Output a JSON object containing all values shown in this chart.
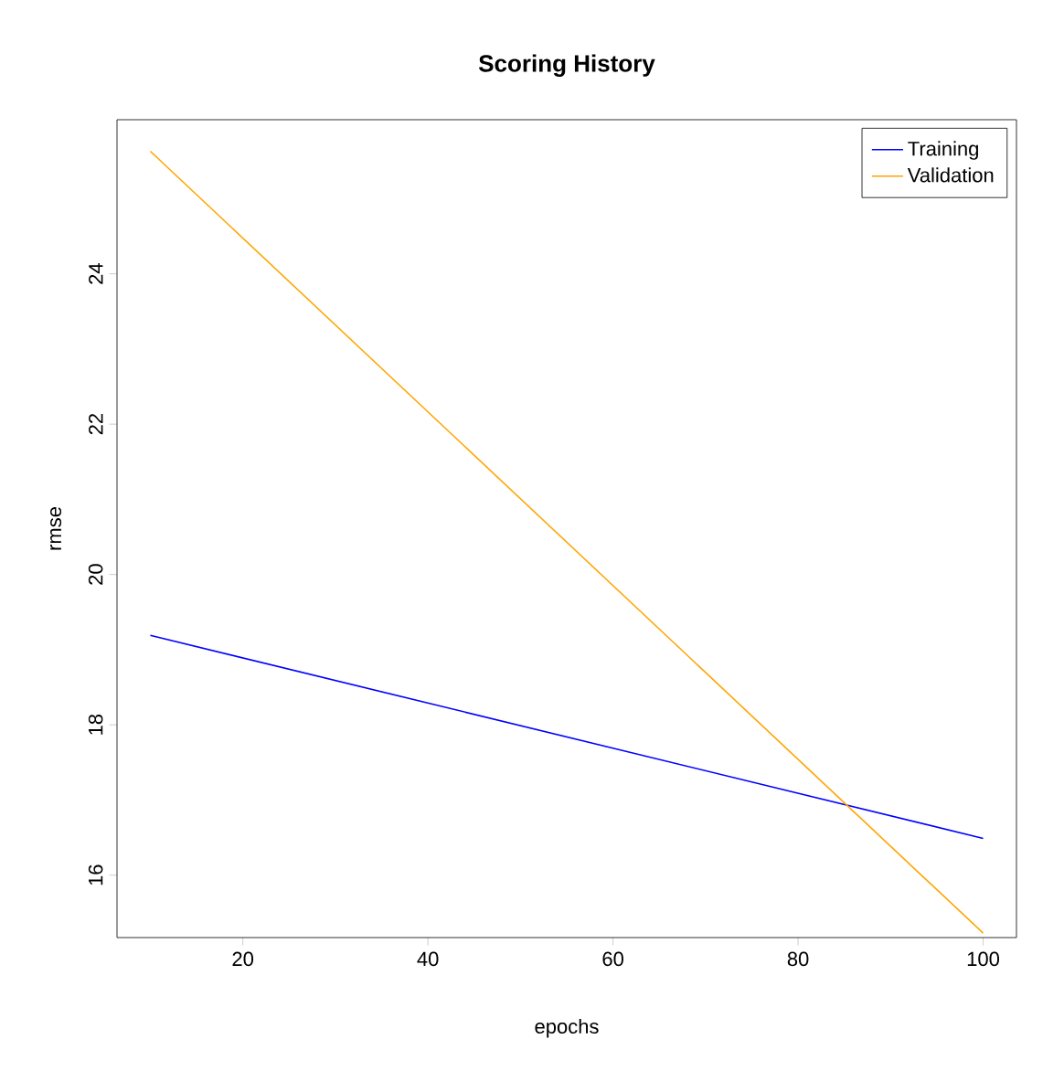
{
  "chart_data": {
    "type": "line",
    "title": "Scoring History",
    "xlabel": "epochs",
    "ylabel": "rmse",
    "x": [
      10,
      100
    ],
    "series": [
      {
        "name": "Training",
        "color": "#0000ff",
        "values": [
          19.19,
          16.49
        ]
      },
      {
        "name": "Validation",
        "color": "#ffa500",
        "values": [
          25.63,
          15.23
        ]
      }
    ],
    "xlim": [
      6.4,
      103.6
    ],
    "ylim": [
      15.17,
      26.05
    ],
    "xticks": [
      20,
      40,
      60,
      80,
      100
    ],
    "yticks": [
      16,
      18,
      20,
      22,
      24
    ],
    "legend": "top right",
    "grid": false,
    "marker": "none",
    "line_style": "solid"
  }
}
